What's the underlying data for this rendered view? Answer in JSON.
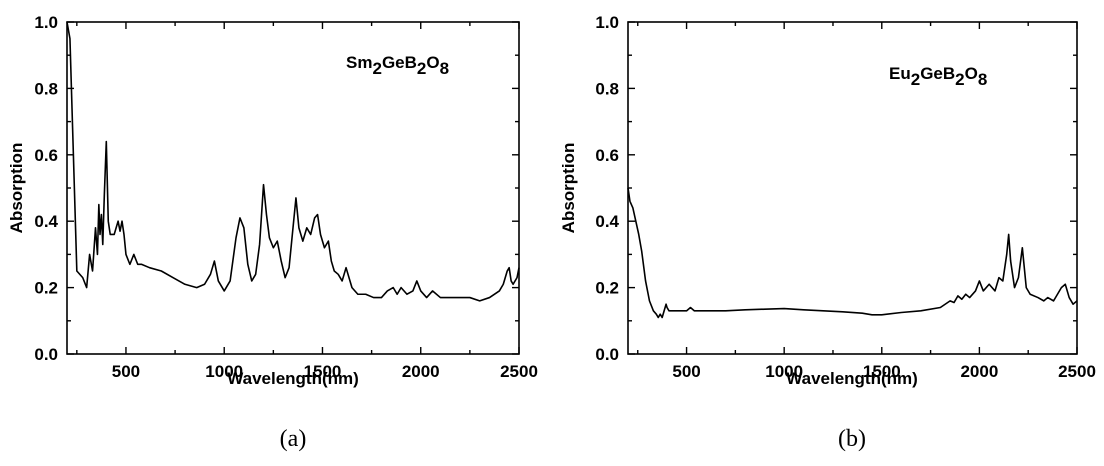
{
  "chart_data": [
    {
      "type": "line",
      "compound": {
        "parts": [
          "Sm",
          "2",
          "GeB",
          "2",
          "O",
          "8"
        ]
      },
      "caption": "(a)",
      "xlabel": "Wavelength(nm)",
      "ylabel": "Absorption",
      "xlim": [
        200,
        2500
      ],
      "ylim": [
        0,
        1.0
      ],
      "xticks": [
        500,
        1000,
        1500,
        2000,
        2500
      ],
      "xtick_labels": [
        "500",
        "1000",
        "1500",
        "2000",
        "2500"
      ],
      "yticks": [
        0.0,
        0.2,
        0.4,
        0.6,
        0.8,
        1.0
      ],
      "ytick_labels": [
        "0.0",
        "0.2",
        "0.4",
        "0.6",
        "0.8",
        "1.0"
      ],
      "grid": false,
      "series": [
        {
          "x": [
            200,
            215,
            235,
            250,
            280,
            300,
            315,
            330,
            345,
            355,
            362,
            368,
            375,
            382,
            390,
            400,
            410,
            420,
            440,
            460,
            470,
            480,
            490,
            500,
            520,
            540,
            560,
            580,
            620,
            680,
            740,
            800,
            860,
            900,
            930,
            950,
            970,
            1000,
            1030,
            1060,
            1080,
            1100,
            1120,
            1140,
            1160,
            1180,
            1200,
            1215,
            1230,
            1250,
            1270,
            1290,
            1310,
            1330,
            1350,
            1365,
            1380,
            1400,
            1420,
            1440,
            1460,
            1475,
            1490,
            1510,
            1530,
            1545,
            1560,
            1580,
            1600,
            1620,
            1650,
            1680,
            1720,
            1760,
            1800,
            1830,
            1860,
            1880,
            1900,
            1930,
            1960,
            1980,
            2000,
            2030,
            2060,
            2100,
            2150,
            2200,
            2250,
            2300,
            2350,
            2400,
            2420,
            2440,
            2450,
            2460,
            2470,
            2490,
            2500
          ],
          "y": [
            1.0,
            0.95,
            0.55,
            0.25,
            0.23,
            0.2,
            0.3,
            0.25,
            0.38,
            0.3,
            0.45,
            0.36,
            0.42,
            0.33,
            0.48,
            0.64,
            0.4,
            0.36,
            0.36,
            0.4,
            0.37,
            0.4,
            0.36,
            0.3,
            0.27,
            0.3,
            0.27,
            0.27,
            0.26,
            0.25,
            0.23,
            0.21,
            0.2,
            0.21,
            0.24,
            0.28,
            0.22,
            0.19,
            0.22,
            0.35,
            0.41,
            0.38,
            0.27,
            0.22,
            0.24,
            0.33,
            0.51,
            0.42,
            0.35,
            0.32,
            0.34,
            0.28,
            0.23,
            0.26,
            0.38,
            0.47,
            0.38,
            0.34,
            0.38,
            0.36,
            0.41,
            0.42,
            0.36,
            0.32,
            0.34,
            0.28,
            0.25,
            0.24,
            0.22,
            0.26,
            0.2,
            0.18,
            0.18,
            0.17,
            0.17,
            0.19,
            0.2,
            0.18,
            0.2,
            0.18,
            0.19,
            0.22,
            0.19,
            0.17,
            0.19,
            0.17,
            0.17,
            0.17,
            0.17,
            0.16,
            0.17,
            0.19,
            0.21,
            0.25,
            0.26,
            0.22,
            0.21,
            0.23,
            0.26
          ]
        }
      ]
    },
    {
      "type": "line",
      "compound": {
        "parts": [
          "Eu",
          "2",
          "GeB",
          "2",
          "O",
          "8"
        ]
      },
      "caption": "(b)",
      "xlabel": "Wavelength(nm)",
      "ylabel": "Absorption",
      "xlim": [
        200,
        2500
      ],
      "ylim": [
        0,
        1.0
      ],
      "xticks": [
        500,
        1000,
        1500,
        2000,
        2500
      ],
      "xtick_labels": [
        "500",
        "1000",
        "1500",
        "2000",
        "2500"
      ],
      "yticks": [
        0.0,
        0.2,
        0.4,
        0.6,
        0.8,
        1.0
      ],
      "ytick_labels": [
        "0.0",
        "0.2",
        "0.4",
        "0.6",
        "0.8",
        "1.0"
      ],
      "grid": false,
      "series": [
        {
          "x": [
            200,
            210,
            225,
            240,
            255,
            270,
            290,
            310,
            330,
            345,
            355,
            365,
            375,
            385,
            395,
            400,
            410,
            430,
            460,
            500,
            520,
            540,
            600,
            700,
            800,
            900,
            1000,
            1100,
            1200,
            1300,
            1400,
            1450,
            1500,
            1600,
            1700,
            1800,
            1850,
            1870,
            1890,
            1910,
            1930,
            1950,
            1980,
            2000,
            2020,
            2050,
            2080,
            2100,
            2120,
            2140,
            2150,
            2160,
            2180,
            2200,
            2220,
            2240,
            2260,
            2300,
            2330,
            2350,
            2380,
            2400,
            2420,
            2440,
            2460,
            2480,
            2500
          ],
          "y": [
            0.5,
            0.46,
            0.44,
            0.4,
            0.36,
            0.31,
            0.22,
            0.16,
            0.13,
            0.12,
            0.11,
            0.12,
            0.11,
            0.13,
            0.15,
            0.14,
            0.13,
            0.13,
            0.13,
            0.13,
            0.14,
            0.13,
            0.13,
            0.13,
            0.133,
            0.135,
            0.137,
            0.133,
            0.13,
            0.127,
            0.123,
            0.118,
            0.118,
            0.125,
            0.13,
            0.14,
            0.16,
            0.155,
            0.175,
            0.165,
            0.18,
            0.17,
            0.19,
            0.22,
            0.19,
            0.21,
            0.19,
            0.23,
            0.22,
            0.3,
            0.36,
            0.28,
            0.2,
            0.23,
            0.32,
            0.2,
            0.18,
            0.17,
            0.16,
            0.17,
            0.16,
            0.18,
            0.2,
            0.21,
            0.17,
            0.15,
            0.16
          ]
        }
      ]
    }
  ]
}
